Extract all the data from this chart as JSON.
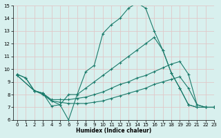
{
  "xlabel": "Humidex (Indice chaleur)",
  "bg_color": "#d8f0ee",
  "grid_color": "#b8d8d4",
  "line_color": "#1a7a6a",
  "xlim": [
    -0.5,
    23
  ],
  "ylim": [
    6,
    15
  ],
  "xticks": [
    0,
    1,
    2,
    3,
    4,
    5,
    6,
    7,
    8,
    9,
    10,
    11,
    12,
    13,
    14,
    15,
    16,
    17,
    18,
    19,
    20,
    21,
    22,
    23
  ],
  "yticks": [
    6,
    7,
    8,
    9,
    10,
    11,
    12,
    13,
    14,
    15
  ],
  "line1_x": [
    0,
    1,
    2,
    3,
    4,
    5,
    6,
    7,
    8,
    9,
    10,
    11,
    12,
    13,
    14,
    15,
    16,
    17,
    18,
    19,
    20,
    21,
    22,
    23
  ],
  "line1_y": [
    9.6,
    9.3,
    8.3,
    8.1,
    7.1,
    7.2,
    6.0,
    8.0,
    9.8,
    10.3,
    12.8,
    13.5,
    14.0,
    14.8,
    15.2,
    14.8,
    13.0,
    11.5,
    9.7,
    8.5,
    7.2,
    7.0,
    7.0,
    7.0
  ],
  "line2_x": [
    0,
    1,
    2,
    3,
    4,
    5,
    6,
    7,
    8,
    9,
    10,
    11,
    12,
    13,
    14,
    15,
    16,
    17,
    18,
    19,
    20,
    21,
    22,
    23
  ],
  "line2_y": [
    9.6,
    9.3,
    8.3,
    8.0,
    7.5,
    7.2,
    8.0,
    8.0,
    8.5,
    9.0,
    9.5,
    10.0,
    10.5,
    11.0,
    11.5,
    12.0,
    12.5,
    11.5,
    9.7,
    8.5,
    7.2,
    7.0,
    7.0,
    7.0
  ],
  "line3_x": [
    0,
    2,
    3,
    4,
    5,
    6,
    7,
    8,
    9,
    10,
    11,
    12,
    13,
    14,
    15,
    16,
    17,
    18,
    19,
    20,
    21,
    22,
    23
  ],
  "line3_y": [
    9.5,
    8.3,
    8.1,
    7.6,
    7.6,
    7.6,
    7.7,
    7.8,
    8.0,
    8.2,
    8.5,
    8.8,
    9.0,
    9.3,
    9.5,
    9.8,
    10.1,
    10.4,
    10.6,
    9.6,
    7.2,
    7.0,
    7.0
  ],
  "line4_x": [
    0,
    2,
    3,
    4,
    5,
    6,
    7,
    8,
    9,
    10,
    11,
    12,
    13,
    14,
    15,
    16,
    17,
    18,
    19,
    20,
    21,
    22,
    23
  ],
  "line4_y": [
    9.5,
    8.3,
    8.1,
    7.5,
    7.4,
    7.3,
    7.3,
    7.3,
    7.4,
    7.5,
    7.7,
    7.9,
    8.1,
    8.3,
    8.5,
    8.8,
    9.0,
    9.2,
    9.4,
    8.5,
    7.2,
    7.0,
    7.0
  ]
}
